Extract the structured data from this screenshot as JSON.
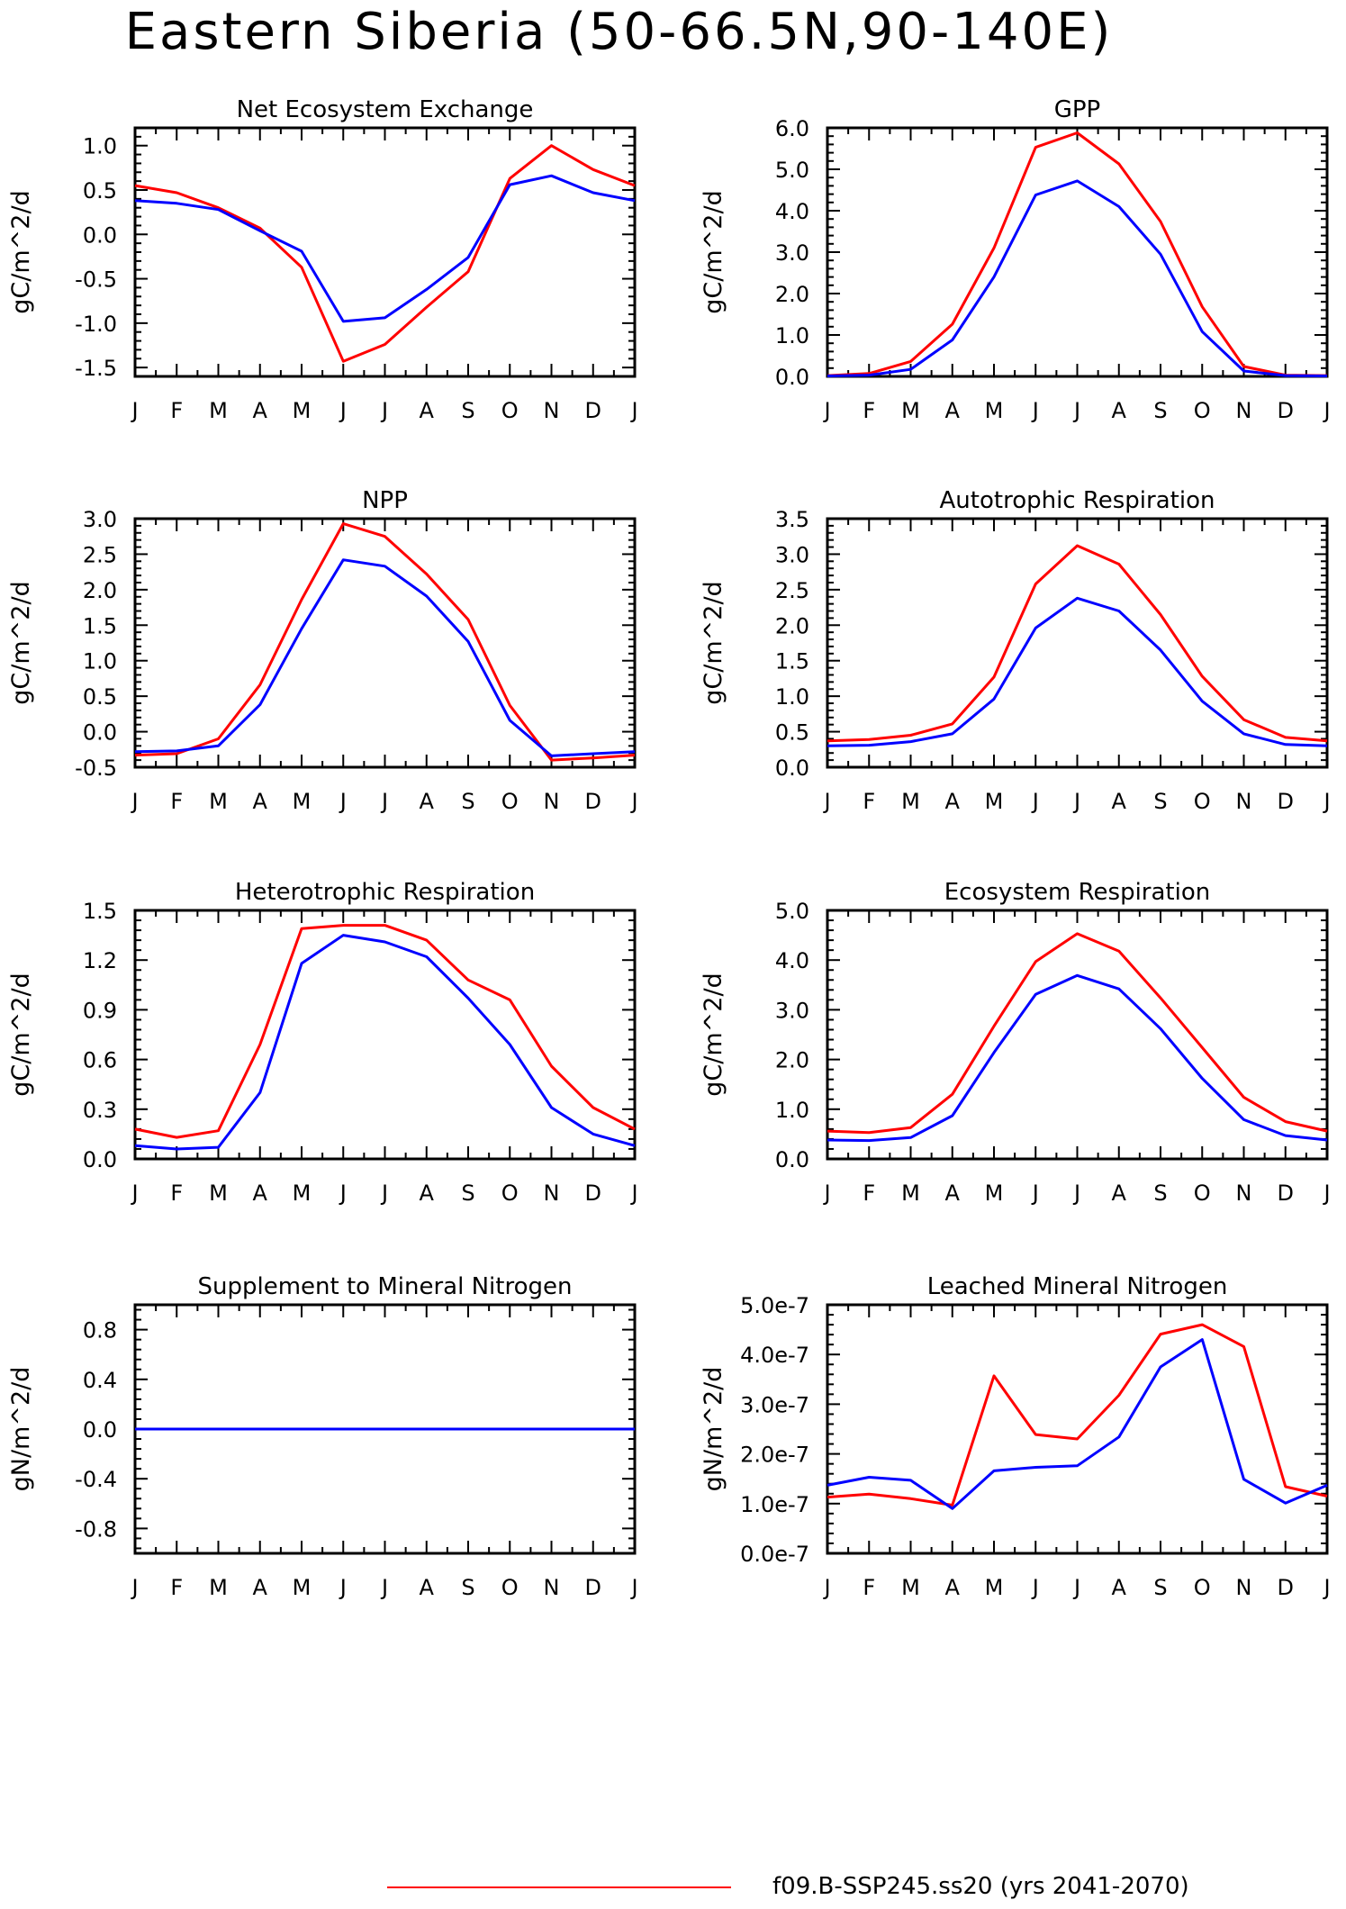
{
  "title": "Eastern Siberia (50-66.5N,90-140E)",
  "legend": {
    "label": "f09.B-SSP245.ss20 (yrs 2041-2070)",
    "color": "#ff0000"
  },
  "series_colors": {
    "red": "#ff0000",
    "blue": "#0000ff"
  },
  "chart_data": [
    {
      "type": "line",
      "title": "Net Ecosystem Exchange",
      "ylabel": "gC/m^2/d",
      "categories": [
        "J",
        "F",
        "M",
        "A",
        "M",
        "J",
        "J",
        "A",
        "S",
        "O",
        "N",
        "D",
        "J"
      ],
      "ylim": [
        -1.6,
        1.2
      ],
      "yticks": [
        -1.5,
        -1.0,
        -0.5,
        0.0,
        0.5,
        1.0
      ],
      "ytick_labels": [
        "-1.5",
        "-1.0",
        "-0.5",
        "0.0",
        "0.5",
        "1.0"
      ],
      "series": [
        {
          "color": "#ff0000",
          "values": [
            0.55,
            0.47,
            0.3,
            0.07,
            -0.37,
            -1.43,
            -1.24,
            -0.82,
            -0.42,
            0.63,
            1.0,
            0.73,
            0.55
          ]
        },
        {
          "color": "#0000ff",
          "values": [
            0.38,
            0.35,
            0.28,
            0.04,
            -0.19,
            -0.98,
            -0.94,
            -0.62,
            -0.26,
            0.56,
            0.66,
            0.47,
            0.38
          ]
        }
      ]
    },
    {
      "type": "line",
      "title": "GPP",
      "ylabel": "gC/m^2/d",
      "categories": [
        "J",
        "F",
        "M",
        "A",
        "M",
        "J",
        "J",
        "A",
        "S",
        "O",
        "N",
        "D",
        "J"
      ],
      "ylim": [
        0,
        6
      ],
      "yticks": [
        0,
        1,
        2,
        3,
        4,
        5,
        6
      ],
      "ytick_labels": [
        "0.0",
        "1.0",
        "2.0",
        "3.0",
        "4.0",
        "5.0",
        "6.0"
      ],
      "series": [
        {
          "color": "#ff0000",
          "values": [
            0.02,
            0.07,
            0.36,
            1.26,
            3.1,
            5.53,
            5.88,
            5.13,
            3.74,
            1.68,
            0.24,
            0.03,
            0.02
          ]
        },
        {
          "color": "#0000ff",
          "values": [
            0.01,
            0.03,
            0.17,
            0.88,
            2.4,
            4.38,
            4.72,
            4.1,
            2.95,
            1.08,
            0.13,
            0.02,
            0.01
          ]
        }
      ]
    },
    {
      "type": "line",
      "title": "NPP",
      "ylabel": "gC/m^2/d",
      "categories": [
        "J",
        "F",
        "M",
        "A",
        "M",
        "J",
        "J",
        "A",
        "S",
        "O",
        "N",
        "D",
        "J"
      ],
      "ylim": [
        -0.5,
        3.0
      ],
      "yticks": [
        -0.5,
        0,
        0.5,
        1,
        1.5,
        2,
        2.5,
        3
      ],
      "ytick_labels": [
        "-0.5",
        "0.0",
        "0.5",
        "1.0",
        "1.5",
        "2.0",
        "2.5",
        "3.0"
      ],
      "series": [
        {
          "color": "#ff0000",
          "values": [
            -0.33,
            -0.31,
            -0.1,
            0.66,
            1.86,
            2.93,
            2.75,
            2.22,
            1.58,
            0.37,
            -0.4,
            -0.37,
            -0.33
          ]
        },
        {
          "color": "#0000ff",
          "values": [
            -0.28,
            -0.27,
            -0.2,
            0.38,
            1.45,
            2.42,
            2.33,
            1.91,
            1.27,
            0.16,
            -0.34,
            -0.31,
            -0.28
          ]
        }
      ]
    },
    {
      "type": "line",
      "title": "Autotrophic Respiration",
      "ylabel": "gC/m^2/d",
      "categories": [
        "J",
        "F",
        "M",
        "A",
        "M",
        "J",
        "J",
        "A",
        "S",
        "O",
        "N",
        "D",
        "J"
      ],
      "ylim": [
        0,
        3.5
      ],
      "yticks": [
        0,
        0.5,
        1,
        1.5,
        2,
        2.5,
        3,
        3.5
      ],
      "ytick_labels": [
        "0.0",
        "0.5",
        "1.0",
        "1.5",
        "2.0",
        "2.5",
        "3.0",
        "3.5"
      ],
      "series": [
        {
          "color": "#ff0000",
          "values": [
            0.37,
            0.39,
            0.45,
            0.61,
            1.27,
            2.58,
            3.12,
            2.86,
            2.15,
            1.28,
            0.67,
            0.42,
            0.37
          ]
        },
        {
          "color": "#0000ff",
          "values": [
            0.3,
            0.31,
            0.36,
            0.47,
            0.96,
            1.96,
            2.38,
            2.2,
            1.65,
            0.93,
            0.47,
            0.32,
            0.3
          ]
        }
      ]
    },
    {
      "type": "line",
      "title": "Heterotrophic Respiration",
      "ylabel": "gC/m^2/d",
      "categories": [
        "J",
        "F",
        "M",
        "A",
        "M",
        "J",
        "J",
        "A",
        "S",
        "O",
        "N",
        "D",
        "J"
      ],
      "ylim": [
        0,
        1.5
      ],
      "yticks": [
        0,
        0.3,
        0.6,
        0.9,
        1.2,
        1.5
      ],
      "ytick_labels": [
        "0.0",
        "0.3",
        "0.6",
        "0.9",
        "1.2",
        "1.5"
      ],
      "series": [
        {
          "color": "#ff0000",
          "values": [
            0.18,
            0.13,
            0.17,
            0.69,
            1.39,
            1.41,
            1.41,
            1.32,
            1.08,
            0.96,
            0.56,
            0.31,
            0.18
          ]
        },
        {
          "color": "#0000ff",
          "values": [
            0.08,
            0.06,
            0.07,
            0.4,
            1.18,
            1.35,
            1.31,
            1.22,
            0.97,
            0.69,
            0.31,
            0.15,
            0.08
          ]
        }
      ]
    },
    {
      "type": "line",
      "title": "Ecosystem Respiration",
      "ylabel": "gC/m^2/d",
      "categories": [
        "J",
        "F",
        "M",
        "A",
        "M",
        "J",
        "J",
        "A",
        "S",
        "O",
        "N",
        "D",
        "J"
      ],
      "ylim": [
        0,
        5
      ],
      "yticks": [
        0,
        1,
        2,
        3,
        4,
        5
      ],
      "ytick_labels": [
        "0.0",
        "1.0",
        "2.0",
        "3.0",
        "4.0",
        "5.0"
      ],
      "series": [
        {
          "color": "#ff0000",
          "values": [
            0.56,
            0.53,
            0.63,
            1.3,
            2.67,
            3.97,
            4.53,
            4.18,
            3.24,
            2.24,
            1.24,
            0.75,
            0.56
          ]
        },
        {
          "color": "#0000ff",
          "values": [
            0.38,
            0.37,
            0.43,
            0.87,
            2.14,
            3.31,
            3.69,
            3.42,
            2.62,
            1.62,
            0.79,
            0.47,
            0.38
          ]
        }
      ]
    },
    {
      "type": "line",
      "title": "Supplement to Mineral Nitrogen",
      "ylabel": "gN/m^2/d",
      "categories": [
        "J",
        "F",
        "M",
        "A",
        "M",
        "J",
        "J",
        "A",
        "S",
        "O",
        "N",
        "D",
        "J"
      ],
      "ylim": [
        -1.0,
        1.0
      ],
      "yticks": [
        -0.8,
        -0.4,
        0,
        0.4,
        0.8
      ],
      "ytick_labels": [
        "-0.8",
        "-0.4",
        "0.0",
        "0.4",
        "0.8"
      ],
      "series": [
        {
          "color": "#ff0000",
          "values": [
            0,
            0,
            0,
            0,
            0,
            0,
            0,
            0,
            0,
            0,
            0,
            0,
            0
          ]
        },
        {
          "color": "#0000ff",
          "values": [
            0,
            0,
            0,
            0,
            0,
            0,
            0,
            0,
            0,
            0,
            0,
            0,
            0
          ]
        }
      ]
    },
    {
      "type": "line",
      "title": "Leached Mineral Nitrogen",
      "ylabel": "gN/m^2/d",
      "categories": [
        "J",
        "F",
        "M",
        "A",
        "M",
        "J",
        "J",
        "A",
        "S",
        "O",
        "N",
        "D",
        "J"
      ],
      "ylim": [
        0,
        5e-07
      ],
      "yticks": [
        0,
        1e-07,
        2e-07,
        3e-07,
        4e-07,
        5e-07
      ],
      "ytick_labels": [
        "0.0e-7",
        "1.0e-7",
        "2.0e-7",
        "3.0e-7",
        "4.0e-7",
        "5.0e-7"
      ],
      "series": [
        {
          "color": "#ff0000",
          "values": [
            1.13e-07,
            1.19e-07,
            1.1e-07,
            9.7e-08,
            3.57e-07,
            2.39e-07,
            2.3e-07,
            3.18e-07,
            4.41e-07,
            4.6e-07,
            4.16e-07,
            1.34e-07,
            1.15e-07
          ]
        },
        {
          "color": "#0000ff",
          "values": [
            1.37e-07,
            1.53e-07,
            1.47e-07,
            9e-08,
            1.66e-07,
            1.73e-07,
            1.76e-07,
            2.34e-07,
            3.75e-07,
            4.3e-07,
            1.49e-07,
            1.01e-07,
            1.37e-07
          ]
        }
      ]
    }
  ]
}
